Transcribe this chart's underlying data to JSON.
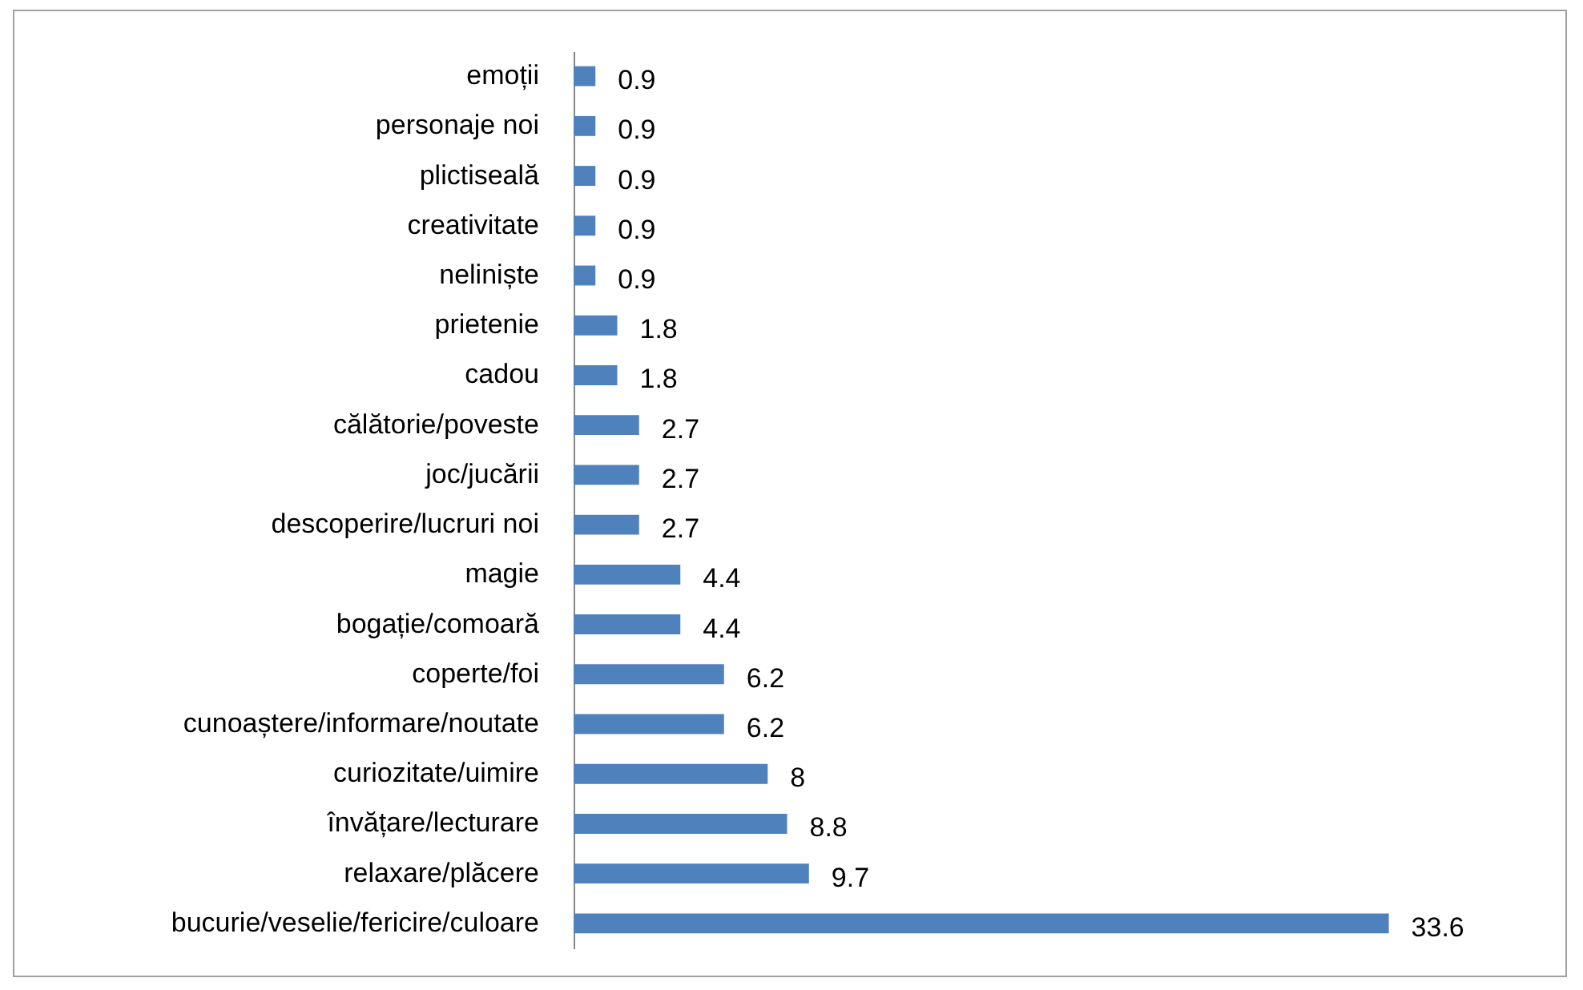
{
  "chart_data": {
    "type": "bar",
    "orientation": "horizontal",
    "categories": [
      "emoții",
      "personaje noi",
      "plictiseală",
      "creativitate",
      "neliniște",
      "prietenie",
      "cadou",
      "călătorie/poveste",
      "joc/jucării",
      "descoperire/lucruri noi",
      "magie",
      "bogație/comoară",
      "coperte/foi",
      "cunoaștere/informare/noutate",
      "curiozitate/uimire",
      "învățare/lecturare",
      "relaxare/plăcere",
      "bucurie/veselie/fericire/culoare"
    ],
    "values": [
      0.9,
      0.9,
      0.9,
      0.9,
      0.9,
      1.8,
      1.8,
      2.7,
      2.7,
      2.7,
      4.4,
      4.4,
      6.2,
      6.2,
      8,
      8.8,
      9.7,
      33.6
    ],
    "color": "#4f81bd",
    "data_labels": true,
    "tick_labels": "y"
  }
}
